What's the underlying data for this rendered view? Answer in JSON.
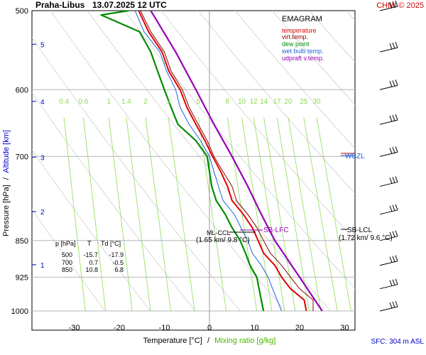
{
  "header": {
    "station": "Praha-Libus",
    "datetime": "13.07.2025 12 UTC",
    "credit": "CHMI © 2025"
  },
  "legend": {
    "title": "EMAGRAM",
    "items": [
      {
        "label": "temperature",
        "color": "#e00000"
      },
      {
        "label": "virt.temp.",
        "color": "#8b0000"
      },
      {
        "label": "dew point",
        "color": "#008c00"
      },
      {
        "label": "wet bulb temp.",
        "color": "#1e64dc"
      },
      {
        "label": "udpraft v.temp.",
        "color": "#9600b4"
      }
    ]
  },
  "axes": {
    "ylabel_pressure": "Pressure [hPa]",
    "ylabel_sep": "/",
    "ylabel_altitude": "Altitude [km]",
    "xlabel_temp": "Temperature [°C]",
    "xlabel_sep": "/",
    "xlabel_mix": "Mixing ratio [g/kg]",
    "sfc": "SFC: 304 m ASL"
  },
  "table": {
    "headers": [
      "p [hPa]",
      "T",
      "Td [°C]"
    ],
    "rows": [
      [
        "500",
        "-15.7",
        "-17.9"
      ],
      [
        "700",
        "0.7",
        "-0.5"
      ],
      [
        "850",
        "10.8",
        "6.8"
      ]
    ]
  },
  "annotations": {
    "ml_ccl": "ML-CCL",
    "ml_ccl_value": "(1.65 km/ 9.8 °C)",
    "sb_lfc": "SB-LFC",
    "sb_lcl": "SB-LCL",
    "sb_lcl_value": "(1.72 km/ 9.6 °C)",
    "wbzl": "WBZL"
  },
  "colors": {
    "temperature": "#e00000",
    "virt_temp": "#8b0000",
    "dew_point": "#008c00",
    "wet_bulb": "#1e64dc",
    "updraft": "#9600b4",
    "mixing": "#8cdc50",
    "altitude": "#0000c8",
    "title_red": "#cc0000",
    "grid": "#b4b4b4",
    "isotherm": "#c8c8c8"
  },
  "chart_data": {
    "type": "line",
    "temp_ticks": [
      -30,
      -20,
      -10,
      0,
      10,
      20,
      30
    ],
    "pressure_ticks": [
      500,
      600,
      700,
      850,
      925,
      1000
    ],
    "altitude_ticks_km": [
      1,
      2,
      3,
      4,
      5
    ],
    "mixing_ratio_labels": [
      "0.4",
      "0.6",
      "1",
      "1.4",
      "2",
      "3",
      "5",
      "8",
      "10",
      "12",
      "14",
      "17",
      "20",
      "25",
      "30"
    ],
    "series": [
      {
        "name": "temperature",
        "points": [
          [
            1000,
            21.5
          ],
          [
            975,
            21
          ],
          [
            950,
            18
          ],
          [
            925,
            16
          ],
          [
            900,
            14.5
          ],
          [
            875,
            12
          ],
          [
            850,
            10.8
          ],
          [
            825,
            9.5
          ],
          [
            800,
            7.5
          ],
          [
            775,
            5
          ],
          [
            750,
            4
          ],
          [
            725,
            2.5
          ],
          [
            700,
            0.7
          ],
          [
            675,
            -1
          ],
          [
            650,
            -3
          ],
          [
            625,
            -5
          ],
          [
            600,
            -6.5
          ],
          [
            575,
            -9
          ],
          [
            550,
            -10.5
          ],
          [
            525,
            -13.5
          ],
          [
            500,
            -15.7
          ]
        ]
      },
      {
        "name": "virt.temp.",
        "points": [
          [
            1000,
            23
          ],
          [
            975,
            23
          ],
          [
            950,
            20
          ],
          [
            925,
            18
          ],
          [
            900,
            16
          ],
          [
            875,
            13.5
          ],
          [
            850,
            12
          ],
          [
            825,
            10.5
          ],
          [
            800,
            8.5
          ],
          [
            775,
            6
          ],
          [
            750,
            5
          ],
          [
            725,
            3
          ],
          [
            700,
            1
          ],
          [
            675,
            -0.5
          ],
          [
            650,
            -2.5
          ],
          [
            625,
            -4.5
          ],
          [
            600,
            -6
          ],
          [
            575,
            -8.5
          ],
          [
            550,
            -10
          ],
          [
            525,
            -13
          ],
          [
            500,
            -15.3
          ]
        ]
      },
      {
        "name": "dew point",
        "points": [
          [
            1000,
            12
          ],
          [
            975,
            11.5
          ],
          [
            950,
            11
          ],
          [
            925,
            10.5
          ],
          [
            900,
            9
          ],
          [
            875,
            8
          ],
          [
            850,
            6.8
          ],
          [
            825,
            5
          ],
          [
            800,
            3.5
          ],
          [
            775,
            1.5
          ],
          [
            750,
            0.5
          ],
          [
            725,
            0
          ],
          [
            700,
            -0.5
          ],
          [
            675,
            -3
          ],
          [
            650,
            -7
          ],
          [
            625,
            -8.5
          ],
          [
            600,
            -10
          ],
          [
            575,
            -11.5
          ],
          [
            550,
            -13
          ],
          [
            525,
            -15.5
          ],
          [
            505,
            -24
          ],
          [
            500,
            -17.9
          ]
        ]
      },
      {
        "name": "wet bulb temp.",
        "points": [
          [
            1000,
            16
          ],
          [
            975,
            15
          ],
          [
            950,
            14
          ],
          [
            925,
            13
          ],
          [
            900,
            11.5
          ],
          [
            875,
            9.5
          ],
          [
            850,
            8.5
          ],
          [
            825,
            7
          ],
          [
            800,
            5.5
          ],
          [
            775,
            3
          ],
          [
            750,
            2
          ],
          [
            725,
            1
          ],
          [
            700,
            0
          ],
          [
            675,
            -2
          ],
          [
            650,
            -4.5
          ],
          [
            625,
            -6.5
          ],
          [
            600,
            -7.5
          ],
          [
            575,
            -9.5
          ],
          [
            550,
            -11
          ],
          [
            525,
            -14.5
          ],
          [
            500,
            -16.5
          ]
        ]
      },
      {
        "name": "udpraft v.temp.",
        "points": [
          [
            1000,
            25
          ],
          [
            925,
            20
          ],
          [
            850,
            14.5
          ],
          [
            800,
            11.5
          ],
          [
            750,
            8.5
          ],
          [
            700,
            5
          ],
          [
            650,
            1
          ],
          [
            600,
            -3
          ],
          [
            550,
            -7.5
          ],
          [
            500,
            -13
          ]
        ]
      }
    ]
  }
}
